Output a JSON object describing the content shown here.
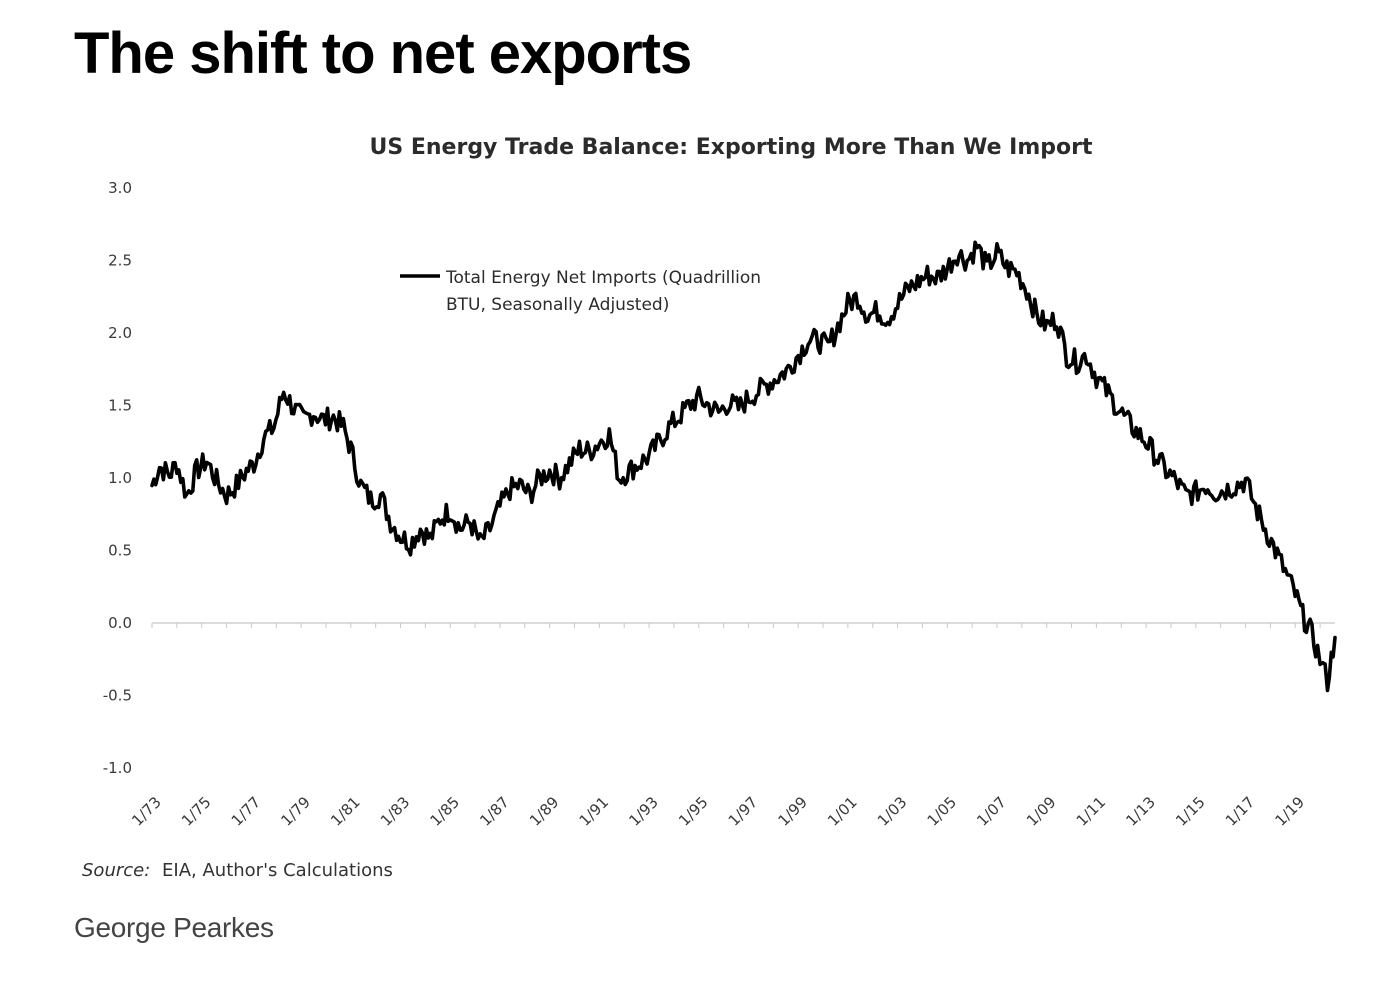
{
  "headline": "The shift to net exports",
  "credit": "George Pearkes",
  "colors": {
    "line": "#000000",
    "axis": "#c8c8c8",
    "text": "#333333",
    "headline": "#000000"
  },
  "chart_data": {
    "type": "line",
    "title": "US Energy Trade Balance: Exporting More Than We Import",
    "xlabel": "",
    "ylabel": "",
    "ylim": [
      -1.0,
      3.0
    ],
    "y_ticks": [
      "3.0",
      "2.5",
      "2.0",
      "1.5",
      "1.0",
      "0.5",
      "0.0",
      "-0.5",
      "-1.0"
    ],
    "x_tick_labels": [
      "1/73",
      "1/75",
      "1/77",
      "1/79",
      "1/81",
      "1/83",
      "1/85",
      "1/87",
      "1/89",
      "1/91",
      "1/93",
      "1/95",
      "1/97",
      "1/99",
      "1/01",
      "1/03",
      "1/05",
      "1/07",
      "1/09",
      "1/11",
      "1/13",
      "1/15",
      "1/17",
      "1/19"
    ],
    "x_start_year": 1973,
    "x_end_year": 2020.6,
    "legend": {
      "position": "top-left",
      "lines": [
        "Total Energy Net Imports (Quadrillion",
        "BTU, Seasonally Adjusted)"
      ]
    },
    "source_label": "Source:",
    "source_text": "EIA, Author's Calculations",
    "series": [
      {
        "name": "Total Energy Net Imports (Quadrillion BTU, Seasonally Adjusted)",
        "x": [
          1973.0,
          1973.3,
          1973.7,
          1974.0,
          1974.4,
          1974.8,
          1975.2,
          1975.6,
          1976.0,
          1976.4,
          1976.8,
          1977.1,
          1977.5,
          1977.9,
          1978.3,
          1978.7,
          1979.1,
          1979.5,
          1979.9,
          1980.3,
          1980.7,
          1981.0,
          1981.4,
          1981.8,
          1982.2,
          1982.6,
          1983.0,
          1983.4,
          1983.8,
          1984.2,
          1984.6,
          1985.0,
          1985.4,
          1985.8,
          1986.2,
          1986.6,
          1987.0,
          1987.4,
          1987.8,
          1988.2,
          1988.6,
          1989.0,
          1989.4,
          1989.8,
          1990.2,
          1990.6,
          1991.0,
          1991.4,
          1991.8,
          1992.2,
          1992.6,
          1993.0,
          1993.4,
          1993.8,
          1994.2,
          1994.6,
          1995.0,
          1995.4,
          1995.8,
          1996.2,
          1996.6,
          1997.0,
          1997.4,
          1997.8,
          1998.2,
          1998.6,
          1999.0,
          1999.4,
          1999.8,
          2000.2,
          2000.6,
          2001.0,
          2001.4,
          2001.8,
          2002.2,
          2002.6,
          2003.0,
          2003.4,
          2003.8,
          2004.2,
          2004.6,
          2005.0,
          2005.4,
          2005.8,
          2006.2,
          2006.6,
          2007.0,
          2007.4,
          2007.8,
          2008.2,
          2008.6,
          2009.0,
          2009.4,
          2009.8,
          2010.2,
          2010.6,
          2011.0,
          2011.4,
          2011.8,
          2012.2,
          2012.6,
          2013.0,
          2013.4,
          2013.8,
          2014.2,
          2014.6,
          2015.0,
          2015.4,
          2015.8,
          2016.2,
          2016.6,
          2017.0,
          2017.4,
          2017.8,
          2018.2,
          2018.6,
          2019.0,
          2019.3,
          2019.6,
          2019.9,
          2020.1,
          2020.3,
          2020.6
        ],
        "values": [
          0.95,
          1.08,
          1.02,
          1.1,
          0.88,
          1.05,
          1.12,
          0.98,
          0.88,
          0.95,
          1.05,
          1.1,
          1.28,
          1.35,
          1.6,
          1.48,
          1.4,
          1.45,
          1.4,
          1.42,
          1.35,
          1.2,
          0.95,
          0.85,
          0.88,
          0.7,
          0.6,
          0.55,
          0.65,
          0.58,
          0.72,
          0.78,
          0.65,
          0.7,
          0.55,
          0.65,
          0.8,
          0.92,
          0.95,
          0.88,
          1.0,
          1.05,
          1.0,
          1.1,
          1.2,
          1.18,
          1.25,
          1.3,
          1.0,
          1.05,
          1.1,
          1.15,
          1.25,
          1.35,
          1.42,
          1.5,
          1.55,
          1.5,
          1.45,
          1.52,
          1.48,
          1.55,
          1.6,
          1.65,
          1.7,
          1.75,
          1.85,
          1.95,
          1.95,
          1.9,
          2.05,
          2.2,
          2.25,
          2.12,
          2.15,
          2.1,
          2.2,
          2.3,
          2.35,
          2.4,
          2.38,
          2.45,
          2.55,
          2.5,
          2.6,
          2.45,
          2.55,
          2.45,
          2.42,
          2.3,
          2.12,
          2.05,
          2.1,
          1.85,
          1.8,
          1.85,
          1.7,
          1.6,
          1.5,
          1.4,
          1.32,
          1.25,
          1.15,
          1.05,
          0.98,
          0.88,
          0.9,
          0.95,
          0.9,
          0.92,
          0.95,
          0.98,
          0.8,
          0.65,
          0.5,
          0.35,
          0.2,
          0.05,
          -0.05,
          -0.2,
          -0.3,
          -0.4,
          -0.1
        ]
      }
    ]
  }
}
